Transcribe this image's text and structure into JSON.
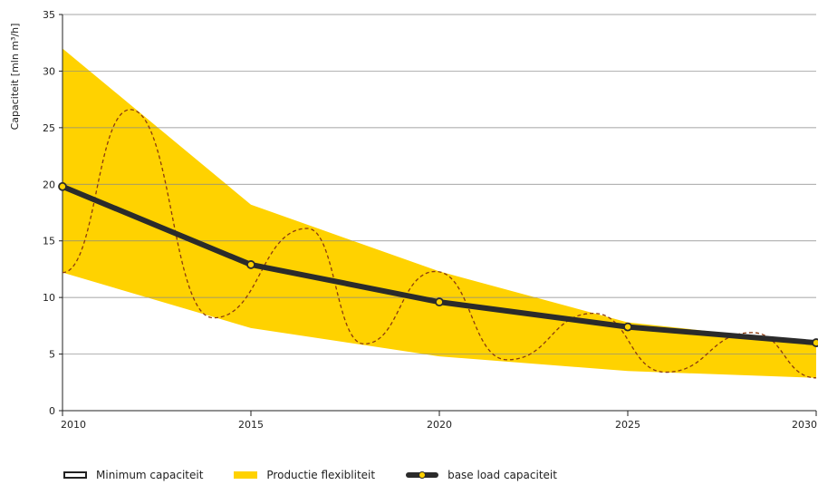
{
  "chart_data": {
    "type": "area",
    "ylabel": "Capaciteit  [mln m³/h]",
    "ylim": [
      0,
      35
    ],
    "yticks": [
      0,
      5,
      10,
      15,
      20,
      25,
      30,
      35
    ],
    "xlim": [
      2010,
      2030
    ],
    "xticks": [
      2010,
      2015,
      2020,
      2025,
      2030
    ],
    "grid": "horizontal",
    "legend_position": "bottom",
    "colors": {
      "band": "#FFD200",
      "line": "#2b2b2b",
      "marker_fill": "#FFD200",
      "dashed": "#8B3A0F",
      "grid": "#888888"
    },
    "band": {
      "name": "Productie flexibliteit",
      "x": [
        2010,
        2015,
        2020,
        2025,
        2030
      ],
      "upper": [
        32.0,
        18.2,
        12.3,
        7.8,
        6.0
      ],
      "lower": [
        12.2,
        7.3,
        4.8,
        3.5,
        2.9
      ]
    },
    "base_load": {
      "name": "base load capaciteit",
      "x": [
        2010,
        2015,
        2020,
        2025,
        2030
      ],
      "y": [
        19.8,
        12.9,
        9.6,
        7.4,
        6.0
      ]
    },
    "minimum_outline_name": "Minimum capaciteit",
    "dashed_series": {
      "x": [
        2010,
        2011.8,
        2014.0,
        2016.5,
        2018.0,
        2019.9,
        2021.8,
        2024.1,
        2026.0,
        2028.3,
        2030.0
      ],
      "y": [
        12.2,
        26.6,
        8.2,
        16.1,
        5.9,
        12.3,
        4.5,
        8.6,
        3.4,
        6.9,
        2.9
      ]
    }
  },
  "legend": {
    "items": [
      {
        "label": "Minimum capaciteit"
      },
      {
        "label": "Productie flexibliteit"
      },
      {
        "label": "base load capaciteit"
      }
    ]
  }
}
